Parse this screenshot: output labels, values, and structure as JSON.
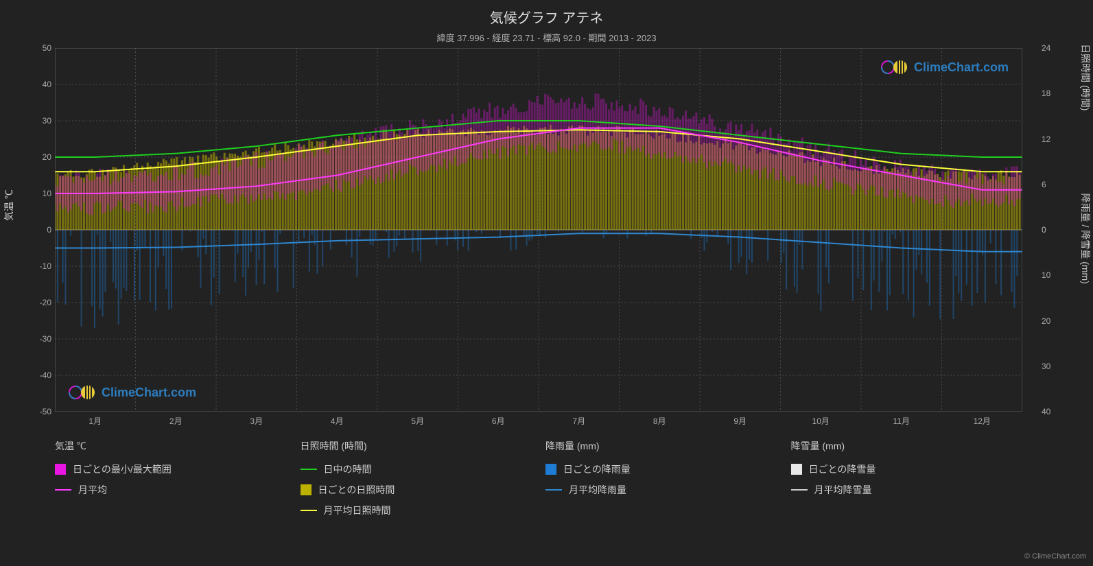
{
  "title": "気候グラフ アテネ",
  "subtitle": "緯度 37.996 - 経度 23.71 - 標高 92.0 - 期間 2013 - 2023",
  "chart": {
    "type": "climate-multi-axis",
    "background_color": "#222222",
    "plot_background": "#222222",
    "grid_color": "#4a4a4a",
    "grid_dash": "2,3",
    "text_color": "#cccccc",
    "tick_color": "#aaaaaa",
    "x_axis": {
      "labels": [
        "1月",
        "2月",
        "3月",
        "4月",
        "5月",
        "6月",
        "7月",
        "8月",
        "9月",
        "10月",
        "11月",
        "12月"
      ],
      "fontsize": 12
    },
    "y_left": {
      "label": "気温 ℃",
      "min": -50,
      "max": 50,
      "tick_step": 10,
      "ticks": [
        50,
        40,
        30,
        20,
        10,
        0,
        -10,
        -20,
        -30,
        -40,
        -50
      ],
      "fontsize": 12
    },
    "y_right_top": {
      "label": "日照時間 (時間)",
      "min": 0,
      "max": 24,
      "tick_step": 6,
      "ticks": [
        24,
        18,
        12,
        6,
        0
      ],
      "fontsize": 12
    },
    "y_right_bottom": {
      "label": "降雨量 / 降雪量 (mm)",
      "min": 0,
      "max": 40,
      "tick_step": 10,
      "ticks": [
        0,
        10,
        20,
        30,
        40
      ],
      "fontsize": 12
    },
    "series": {
      "temp_range_band": {
        "label": "日ごとの最小/最大範囲",
        "color": "#e815e3",
        "opacity": 0.35,
        "min_values": [
          6,
          6,
          8,
          10,
          14,
          19,
          23,
          23,
          19,
          15,
          11,
          8
        ],
        "max_values": [
          14,
          15,
          17,
          21,
          26,
          31,
          35,
          35,
          30,
          25,
          19,
          15
        ]
      },
      "temp_monthly_avg": {
        "label": "月平均",
        "color": "#ff3aff",
        "line_width": 2,
        "values": [
          10,
          10.5,
          12,
          15,
          20,
          25,
          28,
          28,
          24,
          19,
          15,
          11
        ]
      },
      "daylength": {
        "label": "日中の時間",
        "color": "#1fd01f",
        "line_width": 2,
        "values": [
          20,
          21,
          23,
          26,
          28,
          30,
          30,
          28.5,
          26,
          23.5,
          21,
          20
        ]
      },
      "sunshine_daily_band": {
        "label": "日ごとの日照時間",
        "color": "#bdb100",
        "opacity": 0.55,
        "top_values": [
          15,
          17,
          20,
          23,
          26,
          27,
          27.5,
          27,
          25,
          21,
          17,
          15
        ]
      },
      "sunshine_monthly_avg": {
        "label": "月平均日照時間",
        "color": "#ffff3a",
        "line_width": 2,
        "values": [
          16,
          17.5,
          20,
          23,
          26,
          27,
          27.5,
          27,
          25,
          21.5,
          18,
          16
        ]
      },
      "rain_daily_bars": {
        "label": "日ごとの降雨量",
        "color": "#1f7cd4",
        "opacity": 0.4,
        "max_values": [
          22,
          18,
          15,
          12,
          8,
          5,
          2,
          2,
          10,
          18,
          20,
          24
        ]
      },
      "rain_monthly_avg": {
        "label": "月平均降雨量",
        "color": "#2e87d0",
        "line_width": 2,
        "values": [
          -5,
          -4.8,
          -4,
          -3,
          -2.5,
          -2,
          -1,
          -1,
          -2,
          -3.5,
          -5,
          -6
        ]
      },
      "snow_daily_bars": {
        "label": "日ごとの降雪量",
        "color": "#e8e8e8",
        "opacity": 0.3,
        "max_values": [
          1,
          0.5,
          0,
          0,
          0,
          0,
          0,
          0,
          0,
          0,
          0,
          0.5
        ]
      },
      "snow_monthly_avg": {
        "label": "月平均降雪量",
        "color": "#cccccc",
        "line_width": 2,
        "values": [
          0,
          0,
          0,
          0,
          0,
          0,
          0,
          0,
          0,
          0,
          0,
          0
        ]
      }
    }
  },
  "legend": {
    "groups": [
      {
        "header": "気温 ℃",
        "items": [
          {
            "type": "box",
            "color": "#e815e3",
            "label": "日ごとの最小/最大範囲"
          },
          {
            "type": "line",
            "color": "#ff3aff",
            "label": "月平均"
          }
        ]
      },
      {
        "header": "日照時間 (時間)",
        "items": [
          {
            "type": "line",
            "color": "#1fd01f",
            "label": "日中の時間"
          },
          {
            "type": "box",
            "color": "#bdb100",
            "label": "日ごとの日照時間"
          },
          {
            "type": "line",
            "color": "#ffff3a",
            "label": "月平均日照時間"
          }
        ]
      },
      {
        "header": "降雨量 (mm)",
        "items": [
          {
            "type": "box",
            "color": "#1f7cd4",
            "label": "日ごとの降雨量"
          },
          {
            "type": "line",
            "color": "#2e87d0",
            "label": "月平均降雨量"
          }
        ]
      },
      {
        "header": "降雪量 (mm)",
        "items": [
          {
            "type": "box",
            "color": "#e8e8e8",
            "label": "日ごとの降雪量"
          },
          {
            "type": "line",
            "color": "#cccccc",
            "label": "月平均降雪量"
          }
        ]
      }
    ]
  },
  "watermark": {
    "text": "ClimeChart.com",
    "color": "#2e87d0"
  },
  "copyright": "© ClimeChart.com"
}
